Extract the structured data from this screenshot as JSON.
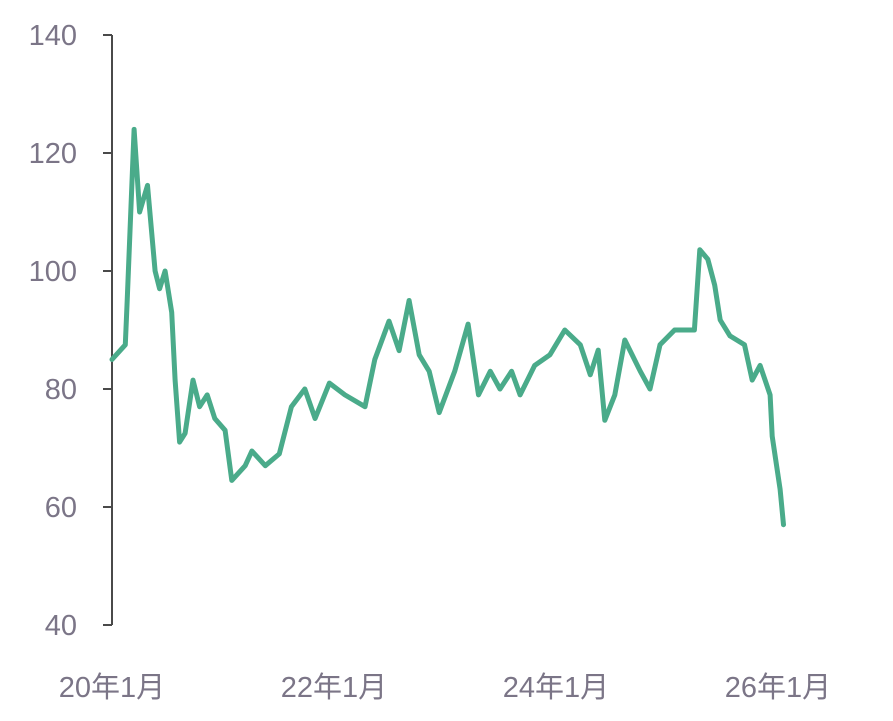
{
  "chart_data": {
    "type": "line",
    "title": "",
    "xlabel": "",
    "ylabel": "",
    "ylim": [
      40,
      140
    ],
    "yticks": [
      "40",
      "60",
      "80",
      "100",
      "120",
      "140"
    ],
    "xticks": [
      {
        "date": "2020-01-01",
        "label": "20年1月"
      },
      {
        "date": "2022-01-01",
        "label": "22年1月"
      },
      {
        "date": "2024-01-01",
        "label": "24年1月"
      },
      {
        "date": "2026-01-01",
        "label": "26年1月"
      }
    ],
    "grid": false,
    "legend": "none",
    "colors": {
      "line": "#4aab8a",
      "axis": "#4a4a4a",
      "text": "#7b7587"
    },
    "series": [
      {
        "points": [
          [
            "2020-01-01",
            85
          ],
          [
            "2020-02-14",
            87.5
          ],
          [
            "2020-02-20",
            95
          ],
          [
            "2020-03-14",
            124
          ],
          [
            "2020-04-01",
            110
          ],
          [
            "2020-04-27",
            114.5
          ],
          [
            "2020-05-22",
            100
          ],
          [
            "2020-06-06",
            97
          ],
          [
            "2020-06-24",
            100
          ],
          [
            "2020-07-16",
            93
          ],
          [
            "2020-07-27",
            81.5
          ],
          [
            "2020-08-11",
            71
          ],
          [
            "2020-08-29",
            72.5
          ],
          [
            "2020-09-24",
            81.5
          ],
          [
            "2020-10-16",
            77
          ],
          [
            "2020-11-10",
            79
          ],
          [
            "2020-12-05",
            75
          ],
          [
            "2021-01-08",
            73
          ],
          [
            "2021-01-30",
            64.5
          ],
          [
            "2021-03-15",
            67
          ],
          [
            "2021-04-06",
            69.5
          ],
          [
            "2021-05-20",
            67
          ],
          [
            "2021-07-05",
            69
          ],
          [
            "2021-08-14",
            77
          ],
          [
            "2021-09-27",
            80
          ],
          [
            "2021-10-31",
            75
          ],
          [
            "2021-12-17",
            81
          ],
          [
            "2022-02-06",
            79
          ],
          [
            "2022-04-13",
            77
          ],
          [
            "2022-05-15",
            85
          ],
          [
            "2022-07-01",
            91.5
          ],
          [
            "2022-08-03",
            86.5
          ],
          [
            "2022-09-05",
            95
          ],
          [
            "2022-10-08",
            85.8
          ],
          [
            "2022-11-10",
            83
          ],
          [
            "2022-12-13",
            76
          ],
          [
            "2023-02-02",
            83
          ],
          [
            "2023-03-18",
            91
          ],
          [
            "2023-04-21",
            79
          ],
          [
            "2023-05-30",
            83
          ],
          [
            "2023-07-01",
            80
          ],
          [
            "2023-08-08",
            83
          ],
          [
            "2023-09-05",
            79
          ],
          [
            "2023-10-23",
            84
          ],
          [
            "2023-12-12",
            85.8
          ],
          [
            "2024-01-30",
            90
          ],
          [
            "2024-03-21",
            87.5
          ],
          [
            "2024-04-23",
            82.4
          ],
          [
            "2024-05-19",
            86.6
          ],
          [
            "2024-06-10",
            74.7
          ],
          [
            "2024-07-13",
            79
          ],
          [
            "2024-08-15",
            88.3
          ],
          [
            "2024-10-05",
            83
          ],
          [
            "2024-11-06",
            80
          ],
          [
            "2024-12-09",
            87.5
          ],
          [
            "2025-01-26",
            90
          ],
          [
            "2025-04-01",
            90
          ],
          [
            "2025-04-19",
            103.6
          ],
          [
            "2025-05-15",
            102
          ],
          [
            "2025-06-07",
            97.6
          ],
          [
            "2025-06-25",
            91.7
          ],
          [
            "2025-07-27",
            89
          ],
          [
            "2025-09-13",
            87.5
          ],
          [
            "2025-10-08",
            81.5
          ],
          [
            "2025-11-03",
            84
          ],
          [
            "2025-12-06",
            79
          ],
          [
            "2025-12-13",
            72
          ],
          [
            "2026-01-08",
            63
          ],
          [
            "2026-01-19",
            57
          ]
        ]
      }
    ]
  }
}
